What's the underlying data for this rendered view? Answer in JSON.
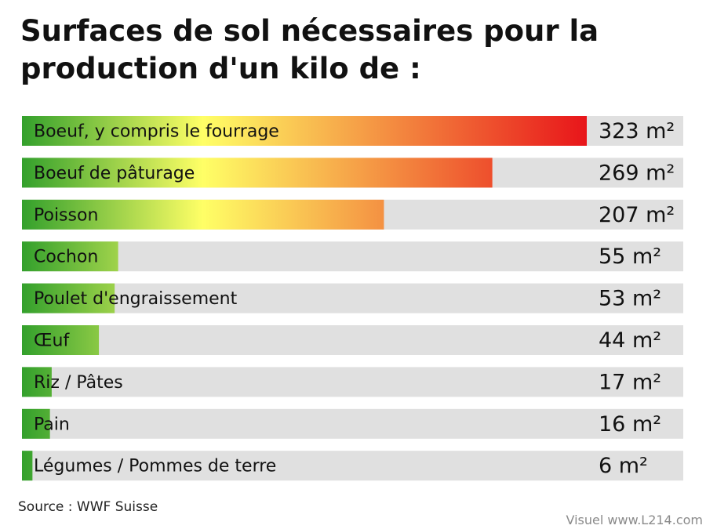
{
  "title_lines": [
    "Surfaces de sol nécessaires pour la",
    "production d'un kilo de :"
  ],
  "source": "Source : WWF Suisse",
  "credit": "Visuel www.L214.com",
  "colors": {
    "track": "#e0e0e0",
    "gradient_start": "#33a02c",
    "gradient_mid": "#ffff66",
    "gradient_end": "#e8151a",
    "label_text": "#111111"
  },
  "chart_data": {
    "type": "bar",
    "orientation": "horizontal",
    "title": "Surfaces de sol nécessaires pour la production d'un kilo de :",
    "unit": "m²",
    "xlim": [
      0,
      340
    ],
    "grid": false,
    "categories": [
      "Boeuf, y compris le fourrage",
      "Boeuf de pâturage",
      "Poisson",
      "Cochon",
      "Poulet d'engraissement",
      "Œuf",
      "Riz / Pâtes",
      "Pain",
      "Légumes / Pommes de terre"
    ],
    "values": [
      323,
      269,
      207,
      55,
      53,
      44,
      17,
      16,
      6
    ],
    "value_labels": [
      "323 m²",
      "269 m²",
      "207 m²",
      "55 m²",
      "53 m²",
      "44 m²",
      "17 m²",
      "16 m²",
      "6 m²"
    ]
  }
}
